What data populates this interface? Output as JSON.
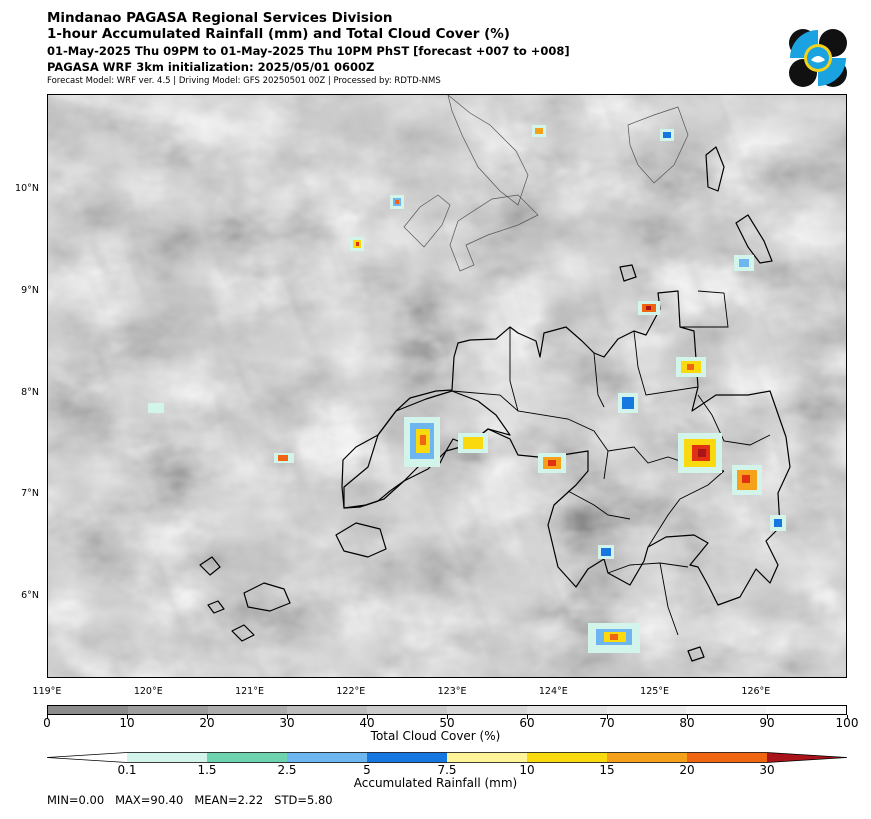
{
  "header": {
    "org": "Mindanao PAGASA Regional Services Division",
    "product": "1-hour Accumulated Rainfall (mm) and Total Cloud Cover (%)",
    "valid": "01-May-2025 Thu 09PM to 01-May-2025 Thu 10PM PhST [forecast +007 to +008]",
    "init": "PAGASA WRF 3km initialization: 2025/05/01 0600Z",
    "meta": "Forecast Model: WRF ver. 4.5 | Driving Model: GFS 20250501 00Z | Processed by: RDTD-NMS"
  },
  "map": {
    "lat_labels": [
      "10°N",
      "9°N",
      "8°N",
      "7°N",
      "6°N"
    ],
    "lon_labels": [
      "119°E",
      "120°E",
      "121°E",
      "122°E",
      "123°E",
      "124°E",
      "125°E",
      "126°E"
    ],
    "extent": {
      "lon": [
        119.0,
        126.9
      ],
      "lat": [
        5.2,
        10.95
      ]
    }
  },
  "cloud_colorbar": {
    "label": "Total Cloud Cover (%)",
    "ticks": [
      "0",
      "10",
      "20",
      "30",
      "40",
      "50",
      "60",
      "70",
      "80",
      "90",
      "100"
    ],
    "colors": [
      "#8c8c8c",
      "#9d9d9d",
      "#adadad",
      "#bdbdbd",
      "#cbcbcb",
      "#d8d8d8",
      "#e3e3e3",
      "#ececec",
      "#f4f4f4",
      "#fafafa"
    ]
  },
  "rain_colorbar": {
    "label": "Accumulated Rainfall (mm)",
    "ticks": [
      "0.1",
      "1.5",
      "2.5",
      "5",
      "7.5",
      "10",
      "15",
      "20",
      "30"
    ],
    "colors": [
      "#ffffff",
      "#d2f4ea",
      "#6fd3b0",
      "#6eb6f0",
      "#1677e0",
      "#fff49a",
      "#fbd90f",
      "#f5a21a",
      "#f06512",
      "#e23012",
      "#a8141a"
    ]
  },
  "stats": {
    "text": "MIN=0.00   MAX=90.40   MEAN=2.22   STD=5.80"
  }
}
